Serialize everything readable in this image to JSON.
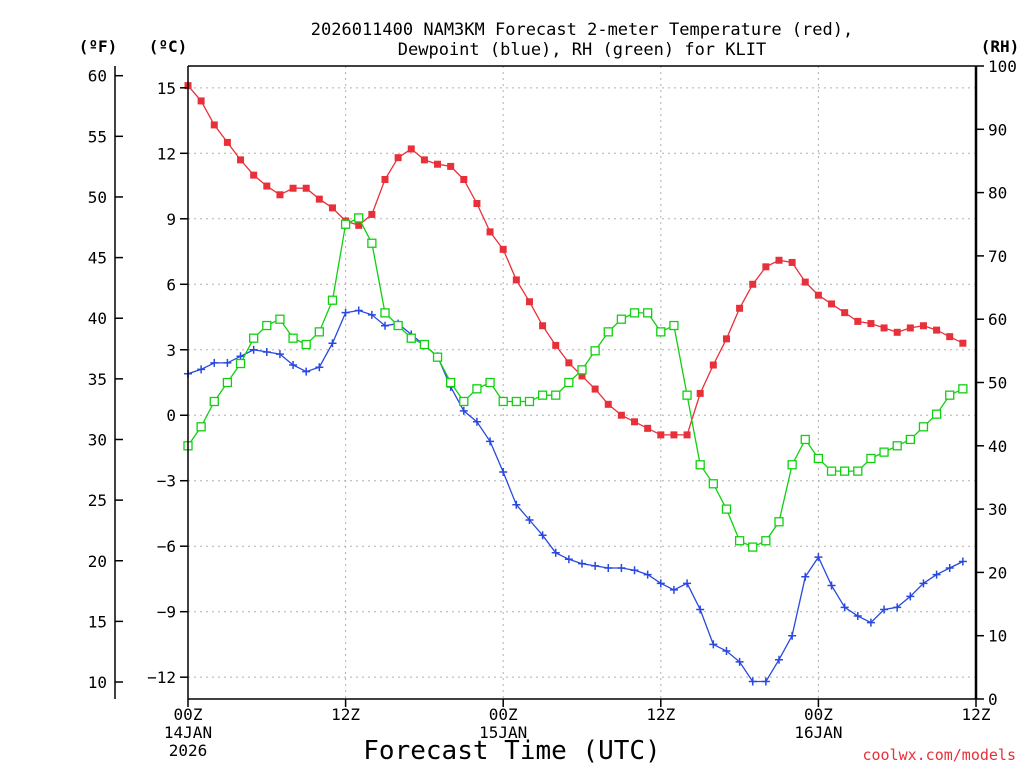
{
  "chart_data": {
    "type": "line",
    "title": [
      "2026011400 NAM3KM Forecast 2-meter Temperature (red),",
      "Dewpoint (blue), RH (green) for KLIT"
    ],
    "xlabel": "Forecast Time (UTC)",
    "credit": "coolwx.com/models",
    "unit_labels": {
      "left_f": "(ºF)",
      "left_c": "(ºC)",
      "right_rh": "(RH)"
    },
    "x_hours_range": [
      0,
      60
    ],
    "x_ticks": [
      {
        "hour": 0,
        "lines": [
          "00Z",
          "14JAN",
          "2026"
        ]
      },
      {
        "hour": 12,
        "lines": [
          "12Z"
        ]
      },
      {
        "hour": 24,
        "lines": [
          "00Z",
          "15JAN"
        ]
      },
      {
        "hour": 36,
        "lines": [
          "12Z"
        ]
      },
      {
        "hour": 48,
        "lines": [
          "00Z",
          "16JAN"
        ]
      },
      {
        "hour": 60,
        "lines": [
          "12Z"
        ]
      }
    ],
    "y_celsius": {
      "range": [
        -13,
        16
      ],
      "ticks": [
        15,
        12,
        9,
        6,
        3,
        0,
        -3,
        -6,
        -9,
        -12
      ],
      "tick_labels": [
        "15",
        "12",
        "9",
        "6",
        "3",
        "0",
        "−3",
        "−6",
        "−9",
        "−12"
      ]
    },
    "y_fahrenheit": {
      "ticks": [
        60,
        55,
        50,
        45,
        40,
        35,
        30,
        25,
        20,
        15,
        10
      ],
      "tick_labels": [
        "60",
        "55",
        "50",
        "45",
        "40",
        "35",
        "30",
        "25",
        "20",
        "15",
        "10"
      ]
    },
    "y_rh": {
      "range": [
        0,
        100
      ],
      "ticks": [
        100,
        90,
        80,
        70,
        60,
        50,
        40,
        30,
        20,
        10,
        0
      ],
      "tick_labels": [
        "100",
        "90",
        "80",
        "70",
        "60",
        "50",
        "40",
        "30",
        "20",
        "10",
        "0"
      ]
    },
    "grid": true,
    "series": [
      {
        "name": "Temperature (°C)",
        "axis": "celsius",
        "color": "#e8303a",
        "marker": "filled-square",
        "values": [
          15.1,
          14.4,
          13.3,
          12.5,
          11.7,
          11.0,
          10.5,
          10.1,
          10.4,
          10.4,
          9.9,
          9.5,
          8.9,
          8.7,
          9.2,
          10.8,
          11.8,
          12.2,
          11.7,
          11.5,
          11.4,
          10.8,
          9.7,
          8.4,
          7.6,
          6.2,
          5.2,
          4.1,
          3.2,
          2.4,
          1.8,
          1.2,
          0.5,
          0.0,
          -0.3,
          -0.6,
          -0.9,
          -0.9,
          -0.9,
          1.0,
          2.3,
          3.5,
          4.9,
          6.0,
          6.8,
          7.1,
          7.0,
          6.1,
          5.5,
          5.1,
          4.7,
          4.3,
          4.2,
          4.0,
          3.8,
          4.0,
          4.1,
          3.9,
          3.6,
          3.3
        ]
      },
      {
        "name": "Dewpoint (°C)",
        "axis": "celsius",
        "color": "#2848e0",
        "marker": "plus",
        "values": [
          1.9,
          2.1,
          2.4,
          2.4,
          2.7,
          3.0,
          2.9,
          2.8,
          2.3,
          2.0,
          2.2,
          3.3,
          4.7,
          4.8,
          4.6,
          4.1,
          4.2,
          3.7,
          3.2,
          2.7,
          1.3,
          0.2,
          -0.3,
          -1.2,
          -2.6,
          -4.1,
          -4.8,
          -5.5,
          -6.3,
          -6.6,
          -6.8,
          -6.9,
          -7.0,
          -7.0,
          -7.1,
          -7.3,
          -7.7,
          -8.0,
          -7.7,
          -8.9,
          -10.5,
          -10.8,
          -11.3,
          -12.2,
          -12.2,
          -11.2,
          -10.1,
          -7.4,
          -6.5,
          -7.8,
          -8.8,
          -9.2,
          -9.5,
          -8.9,
          -8.8,
          -8.3,
          -7.7,
          -7.3,
          -7.0,
          -6.7
        ]
      },
      {
        "name": "RH (%)",
        "axis": "rh",
        "color": "#10d010",
        "marker": "open-square",
        "values": [
          40,
          43,
          47,
          50,
          53,
          57,
          59,
          60,
          57,
          56,
          58,
          63,
          75,
          76,
          72,
          61,
          59,
          57,
          56,
          54,
          50,
          47,
          49,
          50,
          47,
          47,
          47,
          48,
          48,
          50,
          52,
          55,
          58,
          60,
          61,
          61,
          58,
          59,
          48,
          37,
          34,
          30,
          25,
          24,
          25,
          28,
          37,
          41,
          38,
          36,
          36,
          36,
          38,
          39,
          40,
          41,
          43,
          45,
          48,
          49
        ]
      }
    ]
  }
}
